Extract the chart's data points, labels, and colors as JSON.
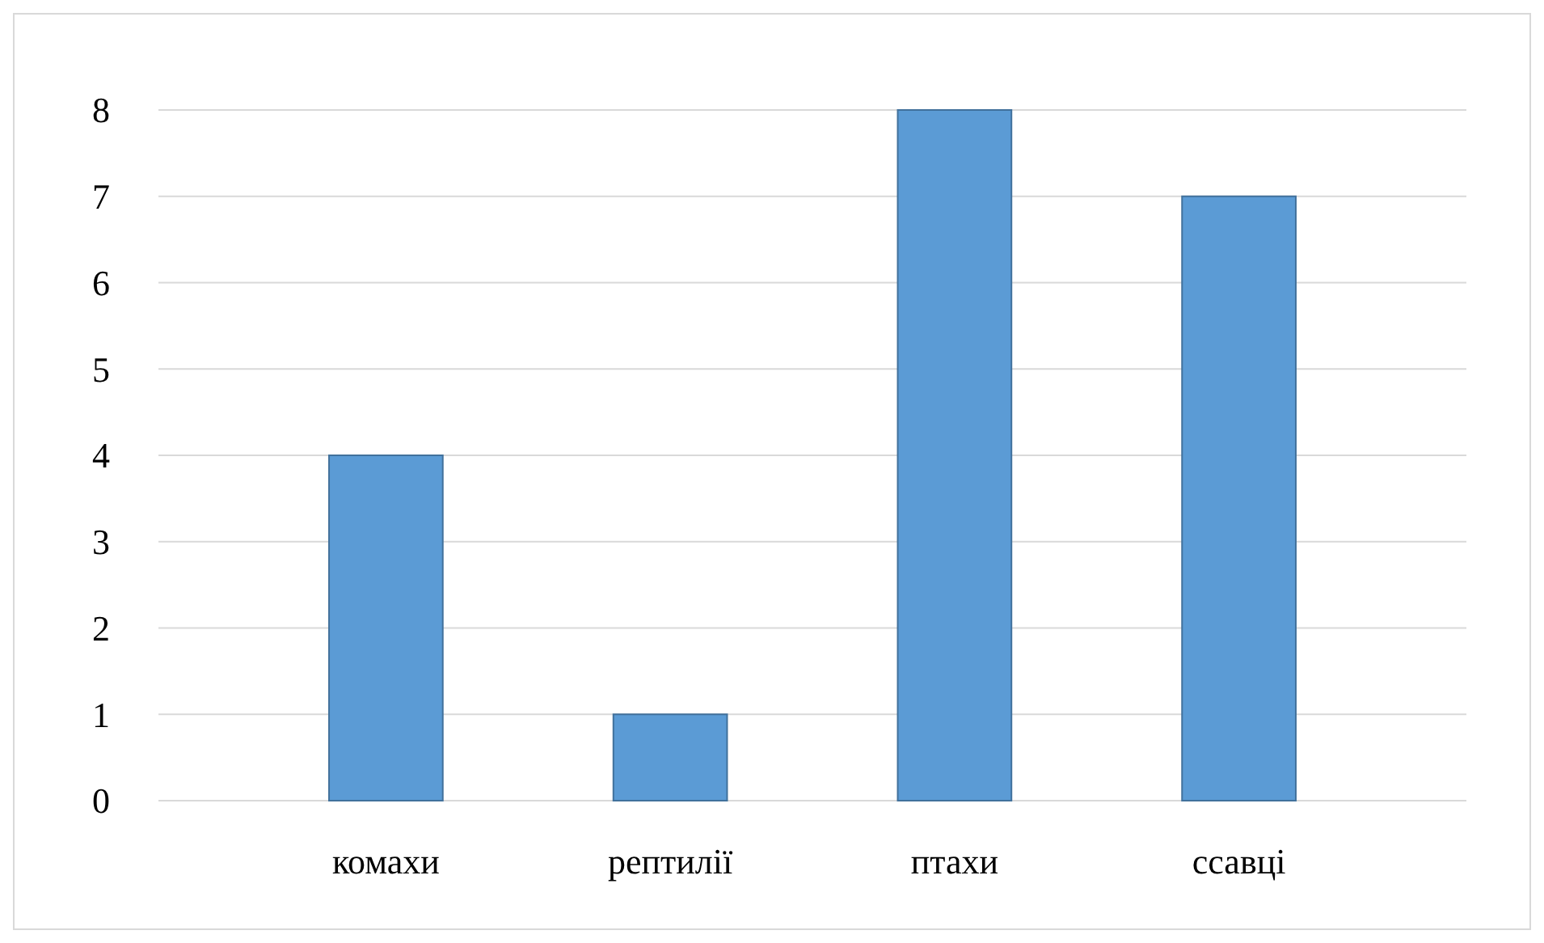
{
  "chart_data": {
    "type": "bar",
    "categories": [
      "комахи",
      "рептилії",
      "птахи",
      "ссавці"
    ],
    "values": [
      4,
      1,
      8,
      7
    ],
    "color": "#5b9bd5",
    "ylim": [
      0,
      8
    ],
    "yticks": [
      0,
      1,
      2,
      3,
      4,
      5,
      6,
      7,
      8
    ],
    "grid": true
  }
}
